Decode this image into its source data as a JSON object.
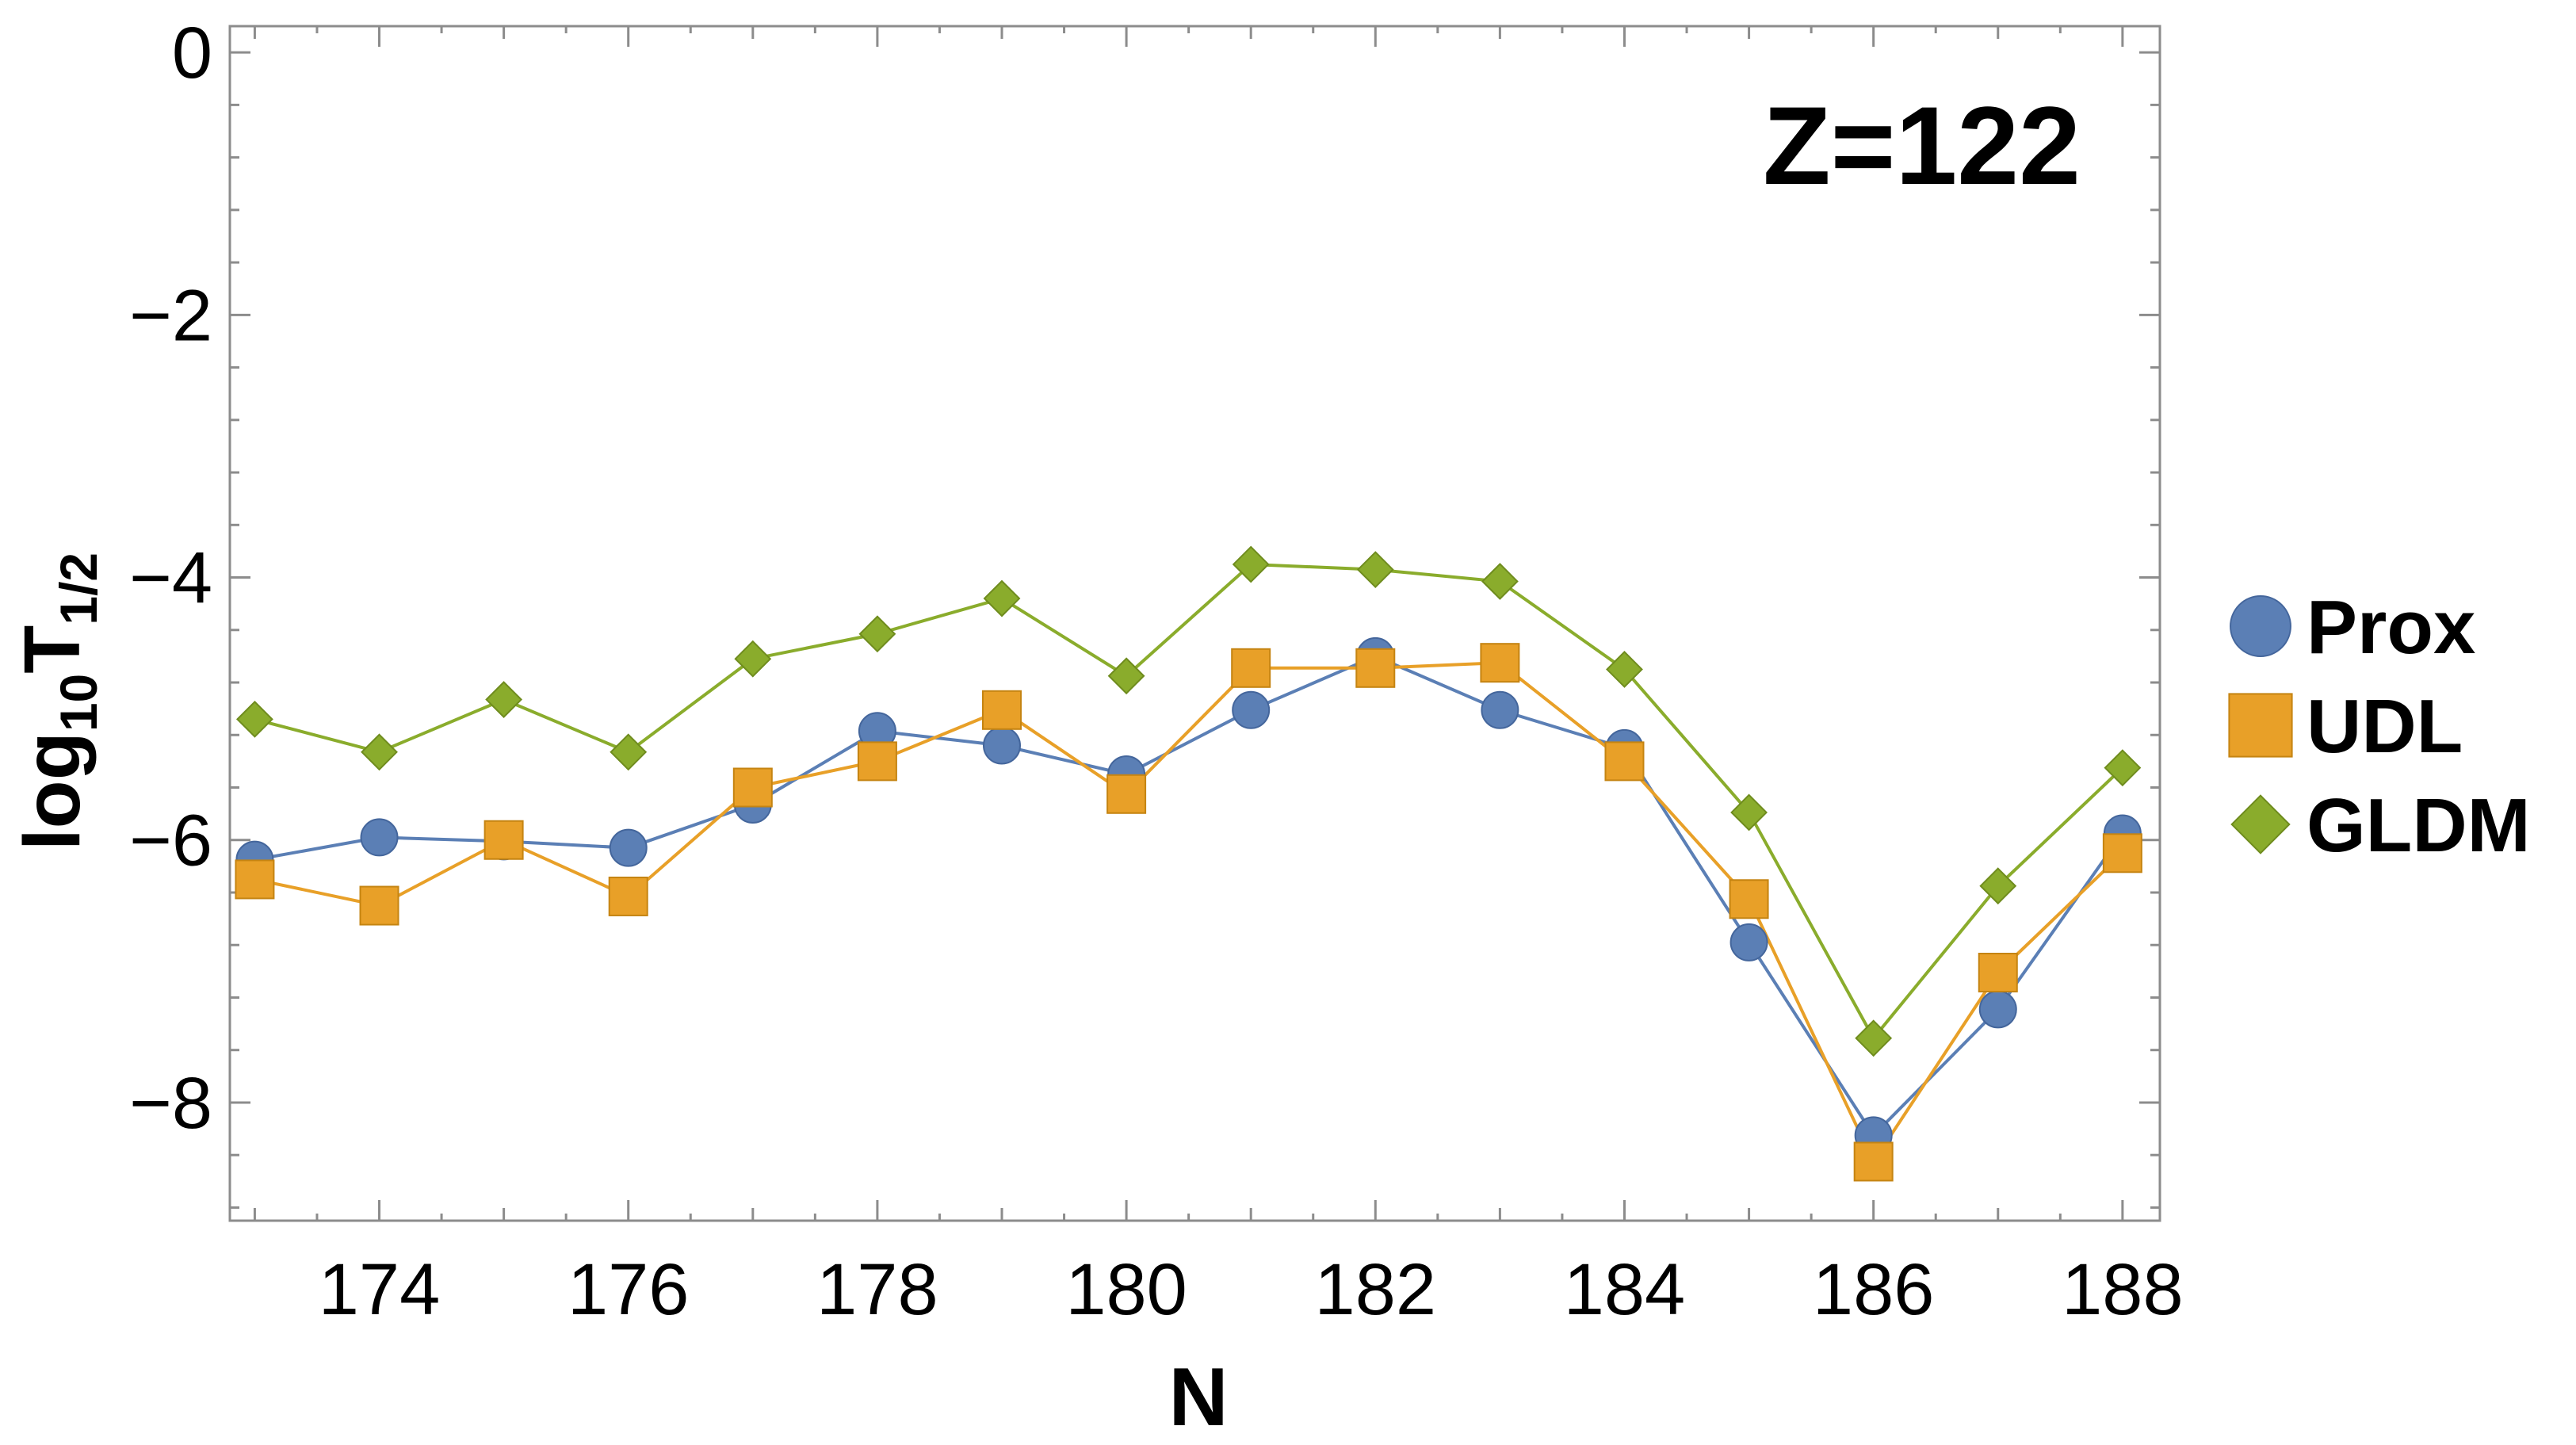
{
  "chart_data": {
    "type": "line",
    "title": "",
    "annotation": "Z=122",
    "xlabel": "N",
    "ylabel": {
      "base": "log",
      "sub1": "10",
      "main": "T",
      "sub2": "1/2"
    },
    "xlim": [
      172.8,
      188.3
    ],
    "ylim": [
      -8.9,
      0.2
    ],
    "xticks": [
      174,
      176,
      178,
      180,
      182,
      184,
      186,
      188
    ],
    "yticks": [
      0,
      -2,
      -4,
      -6,
      -8
    ],
    "ytick_labels": [
      "0",
      "−2",
      "−4",
      "−6",
      "−8"
    ],
    "grid": false,
    "legend_position": "right",
    "x": [
      173,
      174,
      175,
      176,
      177,
      178,
      179,
      180,
      181,
      182,
      183,
      184,
      185,
      186,
      187,
      188
    ],
    "series": [
      {
        "name": "Prox",
        "marker": "circle",
        "color": "#5b7fb5",
        "values": [
          -6.15,
          -5.98,
          -6.01,
          -6.06,
          -5.73,
          -5.17,
          -5.28,
          -5.5,
          -5.01,
          -4.6,
          -5.01,
          -5.3,
          -6.78,
          -8.25,
          -7.29,
          -5.95
        ]
      },
      {
        "name": "UDL",
        "marker": "square",
        "color": "#e8a028",
        "values": [
          -6.3,
          -6.5,
          -6.0,
          -6.43,
          -5.6,
          -5.4,
          -5.01,
          -5.65,
          -4.69,
          -4.69,
          -4.65,
          -5.4,
          -6.45,
          -8.45,
          -7.01,
          -6.1
        ]
      },
      {
        "name": "GLDM",
        "marker": "diamond",
        "color": "#8aac2c",
        "values": [
          -5.08,
          -5.33,
          -4.93,
          -5.33,
          -4.62,
          -4.43,
          -4.16,
          -4.75,
          -3.9,
          -3.94,
          -4.03,
          -4.7,
          -5.79,
          -7.51,
          -6.35,
          -5.45
        ]
      }
    ]
  }
}
